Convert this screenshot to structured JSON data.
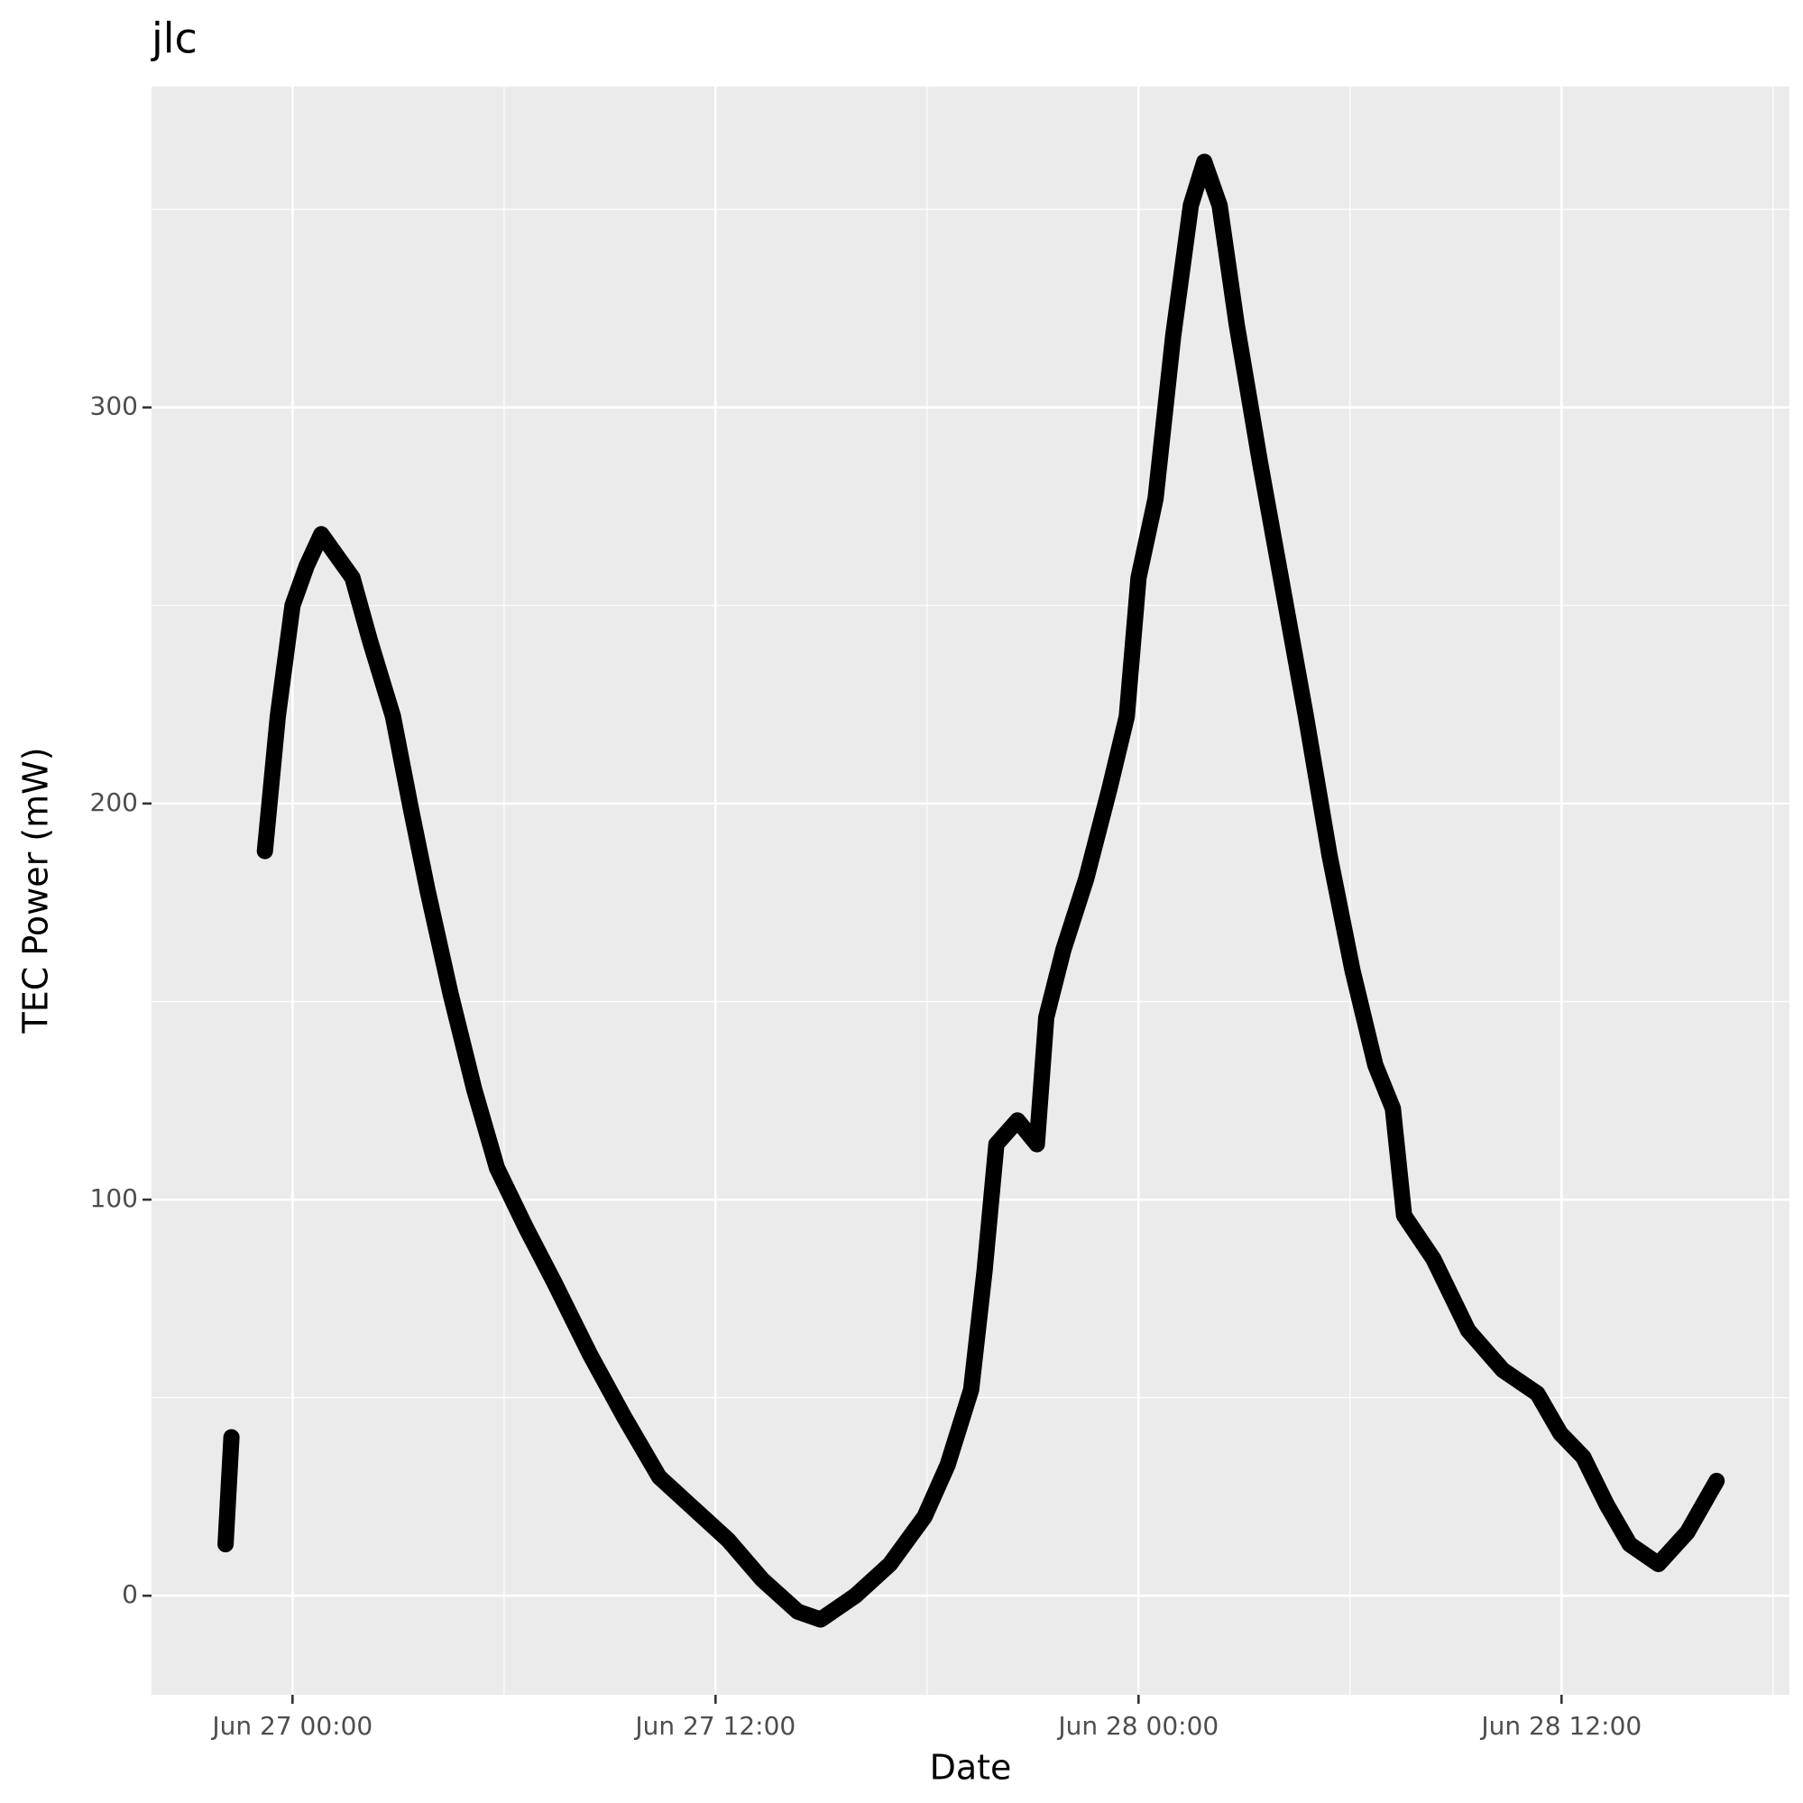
{
  "chart_data": {
    "type": "line",
    "title": "jlc",
    "x_label": "Date",
    "y_label": "TEC Power (mW)",
    "xlim": [
      "Jun 26 20:00",
      "Jun 28 18:28"
    ],
    "ylim": [
      -25,
      381
    ],
    "xticks": [
      "Jun 27 00:00",
      "Jun 27 12:00",
      "Jun 28 00:00",
      "Jun 28 12:00"
    ],
    "yticks": [
      0,
      100,
      200,
      300
    ],
    "grid": true,
    "x": [
      "Jun 26 22:06",
      "Jun 26 22:16",
      "Jun 26 22:45",
      "Jun 26 23:13",
      "Jun 26 23:35",
      "Jun 27 00:00",
      "Jun 27 00:24",
      "Jun 27 00:49",
      "Jun 27 01:13",
      "Jun 27 01:42",
      "Jun 27 02:12",
      "Jun 27 02:51",
      "Jun 27 03:21",
      "Jun 27 03:50",
      "Jun 27 04:29",
      "Jun 27 05:09",
      "Jun 27 05:48",
      "Jun 27 06:37",
      "Jun 27 07:26",
      "Jun 27 08:26",
      "Jun 27 09:25",
      "Jun 27 10:24",
      "Jun 27 11:23",
      "Jun 27 12:22",
      "Jun 27 13:20",
      "Jun 27 14:20",
      "Jun 27 14:59",
      "Jun 27 15:58",
      "Jun 27 16:57",
      "Jun 27 17:56",
      "Jun 27 18:35",
      "Jun 27 19:15",
      "Jun 27 19:38",
      "Jun 27 19:58",
      "Jun 27 20:34",
      "Jun 27 21:07",
      "Jun 27 21:23",
      "Jun 27 21:52",
      "Jun 27 22:31",
      "Jun 27 23:11",
      "Jun 27 23:40",
      "Jun 28 00:00",
      "Jun 28 00:29",
      "Jun 28 00:59",
      "Jun 28 01:29",
      "Jun 28 01:52",
      "Jun 28 02:18",
      "Jun 28 02:47",
      "Jun 28 03:27",
      "Jun 28 04:06",
      "Jun 28 04:45",
      "Jun 28 05:25",
      "Jun 28 06:04",
      "Jun 28 06:43",
      "Jun 28 07:13",
      "Jun 28 07:32",
      "Jun 28 08:22",
      "Jun 28 09:21",
      "Jun 28 10:20",
      "Jun 28 11:19",
      "Jun 28 11:58",
      "Jun 28 12:37",
      "Jun 28 13:17",
      "Jun 28 13:56",
      "Jun 28 14:45",
      "Jun 28 15:34",
      "Jun 28 16:24"
    ],
    "series": [
      {
        "color": "#000000",
        "values": [
          13,
          40,
          null,
          188,
          222,
          250,
          260,
          268,
          263,
          257,
          241,
          222,
          199,
          178,
          152,
          128,
          108,
          93,
          79,
          61,
          45,
          30,
          22,
          14,
          4,
          -4,
          -6,
          0,
          8,
          20,
          33,
          52,
          82,
          114,
          120,
          114,
          146,
          163,
          181,
          204,
          222,
          257,
          277,
          318,
          351,
          362,
          351,
          321,
          286,
          254,
          222,
          187,
          158,
          134,
          123,
          96,
          85,
          67,
          57,
          51,
          41,
          35,
          23,
          13,
          8,
          16,
          29
        ]
      }
    ]
  }
}
